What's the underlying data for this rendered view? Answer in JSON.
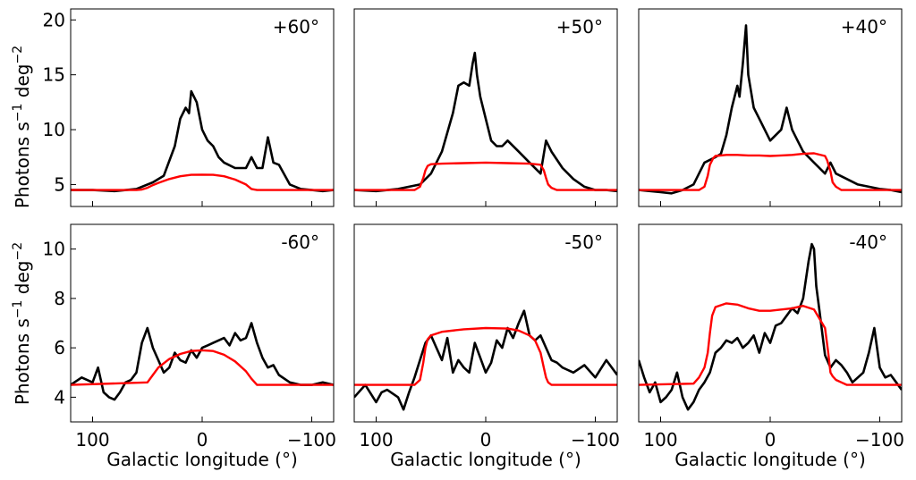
{
  "figure": {
    "xlabel": "Galactic longitude (°)",
    "ylabel_main": "Photons s",
    "ylabel_sup1": "−1",
    "ylabel_mid": " deg",
    "ylabel_sup2": "−2",
    "colors": {
      "data": "#000000",
      "model": "#ff0000"
    }
  },
  "chart_data": [
    {
      "type": "line",
      "panel_label": "+60°",
      "xlim": [
        120,
        -120
      ],
      "ylim": [
        3,
        21
      ],
      "yticks": [
        5,
        10,
        15,
        20
      ],
      "xticks": [
        100,
        0,
        -100
      ],
      "x_tick_labels": [
        "100",
        "0",
        "−100"
      ],
      "y_tick_labels": [
        "5",
        "10",
        "15",
        "20"
      ],
      "series": [
        {
          "name": "data",
          "color": "#000000",
          "x": [
            120,
            100,
            80,
            60,
            45,
            35,
            25,
            20,
            15,
            12,
            10,
            5,
            0,
            -5,
            -10,
            -15,
            -20,
            -30,
            -40,
            -45,
            -50,
            -55,
            -60,
            -65,
            -70,
            -80,
            -90,
            -100,
            -110,
            -120
          ],
          "y": [
            4.5,
            4.5,
            4.4,
            4.6,
            5.2,
            5.8,
            8.5,
            11.0,
            12.0,
            11.5,
            13.5,
            12.5,
            10.0,
            9.0,
            8.5,
            7.5,
            7.0,
            6.5,
            6.5,
            7.5,
            6.5,
            6.5,
            9.3,
            7.0,
            6.8,
            5.0,
            4.6,
            4.5,
            4.4,
            4.5
          ]
        },
        {
          "name": "model",
          "color": "#ff0000",
          "x": [
            120,
            60,
            55,
            50,
            45,
            40,
            30,
            20,
            10,
            0,
            -10,
            -20,
            -30,
            -40,
            -45,
            -50,
            -60,
            -120
          ],
          "y": [
            4.5,
            4.5,
            4.55,
            4.7,
            4.95,
            5.15,
            5.5,
            5.75,
            5.88,
            5.9,
            5.88,
            5.75,
            5.45,
            5.0,
            4.6,
            4.5,
            4.5,
            4.5
          ]
        }
      ]
    },
    {
      "type": "line",
      "panel_label": "+50°",
      "xlim": [
        120,
        -120
      ],
      "ylim": [
        3,
        21
      ],
      "yticks": [
        5,
        10,
        15,
        20
      ],
      "xticks": [
        100,
        0,
        -100
      ],
      "x_tick_labels": [
        "100",
        "0",
        "−100"
      ],
      "y_tick_labels": [
        "5",
        "10",
        "15",
        "20"
      ],
      "series": [
        {
          "name": "data",
          "color": "#000000",
          "x": [
            120,
            100,
            80,
            60,
            50,
            40,
            30,
            25,
            20,
            15,
            12,
            10,
            8,
            5,
            0,
            -5,
            -10,
            -15,
            -20,
            -30,
            -40,
            -50,
            -55,
            -60,
            -70,
            -80,
            -90,
            -100,
            -110,
            -120
          ],
          "y": [
            4.5,
            4.4,
            4.6,
            5.0,
            6.0,
            8.0,
            11.5,
            14.0,
            14.3,
            14.0,
            16.0,
            17.0,
            15.0,
            13.0,
            11.0,
            9.0,
            8.5,
            8.5,
            9.0,
            8.0,
            7.0,
            6.0,
            9.0,
            8.0,
            6.5,
            5.5,
            4.8,
            4.5,
            4.5,
            4.4
          ]
        },
        {
          "name": "model",
          "color": "#ff0000",
          "x": [
            120,
            65,
            60,
            57,
            55,
            53,
            50,
            40,
            20,
            0,
            -20,
            -40,
            -50,
            -53,
            -55,
            -57,
            -60,
            -65,
            -120
          ],
          "y": [
            4.5,
            4.5,
            4.8,
            5.6,
            6.3,
            6.7,
            6.85,
            6.9,
            6.95,
            7.0,
            6.95,
            6.9,
            6.8,
            6.3,
            5.6,
            5.0,
            4.7,
            4.5,
            4.5
          ]
        }
      ]
    },
    {
      "type": "line",
      "panel_label": "+40°",
      "xlim": [
        120,
        -120
      ],
      "ylim": [
        3,
        21
      ],
      "yticks": [
        5,
        10,
        15,
        20
      ],
      "xticks": [
        100,
        0,
        -100
      ],
      "x_tick_labels": [
        "100",
        "0",
        "−100"
      ],
      "y_tick_labels": [
        "5",
        "10",
        "15",
        "20"
      ],
      "series": [
        {
          "name": "data",
          "color": "#000000",
          "x": [
            120,
            100,
            90,
            80,
            70,
            60,
            50,
            45,
            40,
            35,
            30,
            28,
            25,
            22,
            20,
            15,
            10,
            5,
            0,
            -10,
            -15,
            -20,
            -25,
            -30,
            -40,
            -50,
            -55,
            -60,
            -70,
            -80,
            -90,
            -100,
            -110,
            -120
          ],
          "y": [
            4.5,
            4.3,
            4.2,
            4.5,
            5.0,
            7.0,
            7.5,
            7.8,
            9.5,
            12.0,
            14.0,
            13.0,
            16.0,
            19.5,
            15.0,
            12.0,
            11.0,
            10.0,
            9.0,
            10.0,
            12.0,
            10.0,
            9.0,
            8.0,
            7.0,
            6.0,
            7.0,
            6.0,
            5.5,
            5.0,
            4.8,
            4.6,
            4.5,
            4.3
          ]
        },
        {
          "name": "model",
          "color": "#ff0000",
          "x": [
            120,
            65,
            60,
            57,
            55,
            52,
            50,
            40,
            30,
            20,
            10,
            0,
            -10,
            -20,
            -30,
            -40,
            -50,
            -52,
            -55,
            -57,
            -60,
            -65,
            -120
          ],
          "y": [
            4.5,
            4.5,
            4.8,
            5.8,
            6.8,
            7.4,
            7.6,
            7.7,
            7.7,
            7.65,
            7.65,
            7.6,
            7.65,
            7.7,
            7.8,
            7.85,
            7.6,
            7.2,
            6.2,
            5.2,
            4.8,
            4.5,
            4.5
          ]
        }
      ]
    },
    {
      "type": "line",
      "panel_label": "-60°",
      "xlim": [
        120,
        -120
      ],
      "ylim": [
        3,
        11
      ],
      "yticks": [
        4,
        6,
        8,
        10
      ],
      "xticks": [
        100,
        0,
        -100
      ],
      "x_tick_labels": [
        "100",
        "0",
        "−100"
      ],
      "y_tick_labels": [
        "4",
        "6",
        "8",
        "10"
      ],
      "series": [
        {
          "name": "data",
          "color": "#000000",
          "x": [
            120,
            110,
            100,
            95,
            90,
            85,
            80,
            75,
            70,
            65,
            60,
            55,
            50,
            45,
            40,
            35,
            30,
            25,
            20,
            15,
            10,
            5,
            0,
            -5,
            -10,
            -15,
            -20,
            -25,
            -30,
            -35,
            -40,
            -45,
            -50,
            -55,
            -60,
            -65,
            -70,
            -80,
            -90,
            -100,
            -110,
            -120
          ],
          "y": [
            4.5,
            4.8,
            4.6,
            5.2,
            4.2,
            4.0,
            3.9,
            4.2,
            4.6,
            4.7,
            5.0,
            6.2,
            6.8,
            6.0,
            5.5,
            5.0,
            5.2,
            5.8,
            5.5,
            5.4,
            5.9,
            5.6,
            6.0,
            6.1,
            6.2,
            6.3,
            6.4,
            6.1,
            6.6,
            6.3,
            6.4,
            7.0,
            6.2,
            5.6,
            5.2,
            5.3,
            4.9,
            4.6,
            4.5,
            4.5,
            4.6,
            4.5
          ]
        },
        {
          "name": "model",
          "color": "#ff0000",
          "x": [
            120,
            50,
            45,
            40,
            30,
            20,
            10,
            0,
            -10,
            -20,
            -30,
            -40,
            -45,
            -50,
            -120
          ],
          "y": [
            4.5,
            4.6,
            4.9,
            5.2,
            5.55,
            5.75,
            5.87,
            5.9,
            5.87,
            5.72,
            5.45,
            5.05,
            4.75,
            4.5,
            4.5
          ]
        }
      ]
    },
    {
      "type": "line",
      "panel_label": "-50°",
      "xlim": [
        120,
        -120
      ],
      "ylim": [
        3,
        11
      ],
      "yticks": [
        4,
        6,
        8,
        10
      ],
      "xticks": [
        100,
        0,
        -100
      ],
      "x_tick_labels": [
        "100",
        "0",
        "−100"
      ],
      "y_tick_labels": [
        "4",
        "6",
        "8",
        "10"
      ],
      "series": [
        {
          "name": "data",
          "color": "#000000",
          "x": [
            120,
            110,
            100,
            95,
            90,
            80,
            75,
            70,
            65,
            60,
            55,
            50,
            45,
            40,
            35,
            30,
            25,
            20,
            15,
            10,
            5,
            0,
            -5,
            -10,
            -15,
            -20,
            -25,
            -30,
            -35,
            -40,
            -45,
            -50,
            -55,
            -60,
            -65,
            -70,
            -80,
            -90,
            -100,
            -110,
            -120
          ],
          "y": [
            4.0,
            4.5,
            3.8,
            4.2,
            4.3,
            4.0,
            3.5,
            4.2,
            4.8,
            5.5,
            6.2,
            6.5,
            6.0,
            5.5,
            6.4,
            5.0,
            5.5,
            5.2,
            5.0,
            6.2,
            5.6,
            5.0,
            5.4,
            6.3,
            6.0,
            6.8,
            6.4,
            7.0,
            7.5,
            6.5,
            6.3,
            6.5,
            6.0,
            5.5,
            5.4,
            5.2,
            5.0,
            5.3,
            4.8,
            5.5,
            4.9
          ]
        },
        {
          "name": "model",
          "color": "#ff0000",
          "x": [
            120,
            65,
            60,
            57,
            55,
            53,
            50,
            40,
            20,
            0,
            -20,
            -30,
            -40,
            -45,
            -50,
            -53,
            -55,
            -57,
            -60,
            -65,
            -120
          ],
          "y": [
            4.5,
            4.5,
            4.7,
            5.4,
            6.0,
            6.35,
            6.5,
            6.65,
            6.75,
            6.8,
            6.78,
            6.7,
            6.5,
            6.3,
            5.8,
            5.2,
            4.8,
            4.6,
            4.5,
            4.5,
            4.5
          ]
        }
      ]
    },
    {
      "type": "line",
      "panel_label": "-40°",
      "xlim": [
        120,
        -120
      ],
      "ylim": [
        3,
        11
      ],
      "yticks": [
        4,
        6,
        8,
        10
      ],
      "xticks": [
        100,
        0,
        -100
      ],
      "x_tick_labels": [
        "100",
        "0",
        "−100"
      ],
      "y_tick_labels": [
        "4",
        "6",
        "8",
        "10"
      ],
      "series": [
        {
          "name": "data",
          "color": "#000000",
          "x": [
            120,
            115,
            110,
            105,
            100,
            95,
            90,
            85,
            80,
            75,
            70,
            65,
            60,
            55,
            50,
            45,
            40,
            35,
            30,
            25,
            20,
            15,
            10,
            5,
            0,
            -5,
            -10,
            -15,
            -20,
            -25,
            -30,
            -35,
            -38,
            -40,
            -42,
            -45,
            -50,
            -55,
            -60,
            -65,
            -70,
            -75,
            -80,
            -85,
            -90,
            -95,
            -100,
            -105,
            -110,
            -115,
            -120
          ],
          "y": [
            5.5,
            4.8,
            4.2,
            4.6,
            3.8,
            4.0,
            4.3,
            5.0,
            4.0,
            3.5,
            3.8,
            4.3,
            4.6,
            5.0,
            5.8,
            6.0,
            6.3,
            6.2,
            6.4,
            6.0,
            6.2,
            6.5,
            5.8,
            6.6,
            6.2,
            6.9,
            7.0,
            7.3,
            7.6,
            7.4,
            8.0,
            9.5,
            10.2,
            10.0,
            8.5,
            7.5,
            5.7,
            5.2,
            5.5,
            5.3,
            5.0,
            4.6,
            4.8,
            5.0,
            5.8,
            6.8,
            5.2,
            4.8,
            4.9,
            4.6,
            4.3
          ]
        },
        {
          "name": "model",
          "color": "#ff0000",
          "x": [
            120,
            70,
            65,
            60,
            57,
            55,
            53,
            50,
            40,
            30,
            20,
            10,
            0,
            -10,
            -20,
            -30,
            -40,
            -50,
            -53,
            -55,
            -57,
            -60,
            -65,
            -70,
            -80,
            -120
          ],
          "y": [
            4.5,
            4.55,
            4.8,
            5.2,
            5.8,
            6.6,
            7.3,
            7.65,
            7.8,
            7.75,
            7.6,
            7.5,
            7.5,
            7.55,
            7.6,
            7.7,
            7.55,
            6.8,
            5.8,
            5.0,
            4.85,
            4.7,
            4.6,
            4.5,
            4.5,
            4.5
          ]
        }
      ]
    }
  ]
}
